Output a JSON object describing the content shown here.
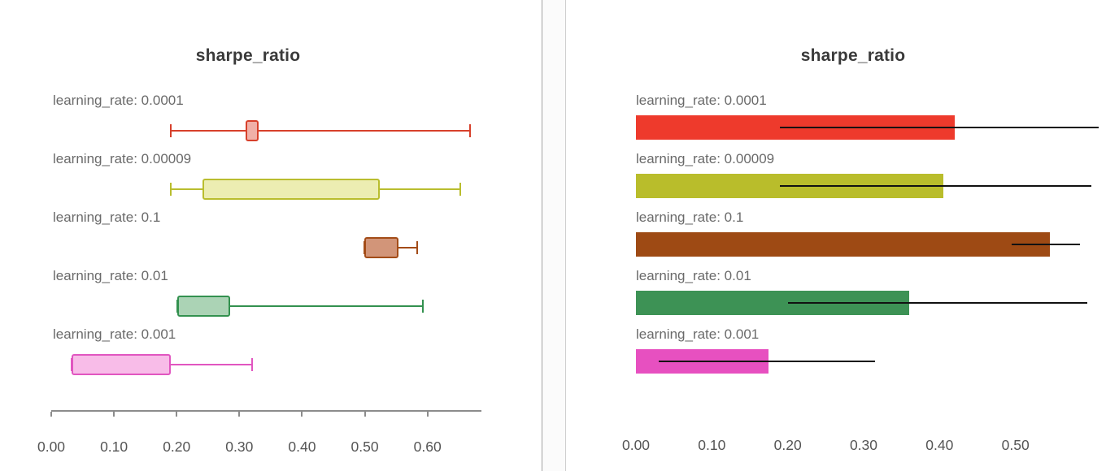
{
  "chart_data": [
    {
      "type": "boxplot",
      "title": "sharpe_ratio",
      "orientation": "horizontal",
      "xlabel": "",
      "xlim": [
        0.0,
        0.686
      ],
      "axis_line": true,
      "grid": false,
      "xticks": [
        0.0,
        0.1,
        0.2,
        0.3,
        0.4,
        0.5,
        0.6
      ],
      "xtick_labels": [
        "0.00",
        "0.10",
        "0.20",
        "0.30",
        "0.40",
        "0.50",
        "0.60"
      ],
      "series": [
        {
          "label": "learning_rate: 0.0001",
          "color": "#d7402b",
          "fill": "#f0b0a8",
          "whisker_low": 0.19,
          "q1": 0.31,
          "q3": 0.33,
          "whisker_high": 0.67
        },
        {
          "label": "learning_rate: 0.00009",
          "color": "#b9bd2e",
          "fill": "#ecedb2",
          "whisker_low": 0.19,
          "q1": 0.24,
          "q3": 0.525,
          "whisker_high": 0.655
        },
        {
          "label": "learning_rate: 0.1",
          "color": "#a34c18",
          "fill": "#d29579",
          "whisker_low": 0.5,
          "q1": 0.5,
          "q3": 0.555,
          "whisker_high": 0.585
        },
        {
          "label": "learning_rate: 0.01",
          "color": "#33914f",
          "fill": "#abd3b5",
          "whisker_low": 0.2,
          "q1": 0.2,
          "q3": 0.285,
          "whisker_high": 0.595
        },
        {
          "label": "learning_rate: 0.001",
          "color": "#e156c0",
          "fill": "#f8bce8",
          "whisker_low": 0.03,
          "q1": 0.03,
          "q3": 0.19,
          "whisker_high": 0.32
        }
      ]
    },
    {
      "type": "bar",
      "title": "sharpe_ratio",
      "orientation": "horizontal",
      "xlabel": "",
      "xlim": [
        0.0,
        0.63
      ],
      "axis_line": false,
      "grid": false,
      "error_bar_color": "#111111",
      "xticks": [
        0.0,
        0.1,
        0.2,
        0.3,
        0.4,
        0.5
      ],
      "xtick_labels": [
        "0.00",
        "0.10",
        "0.20",
        "0.30",
        "0.40",
        "0.50"
      ],
      "series": [
        {
          "label": "learning_rate: 0.0001",
          "color": "#ee3a2c",
          "value": 0.42,
          "err_low": 0.19,
          "err_high": 0.61
        },
        {
          "label": "learning_rate: 0.00009",
          "color": "#b9bd2b",
          "value": 0.405,
          "err_low": 0.19,
          "err_high": 0.6
        },
        {
          "label": "learning_rate: 0.1",
          "color": "#9e4a14",
          "value": 0.545,
          "err_low": 0.495,
          "err_high": 0.585
        },
        {
          "label": "learning_rate: 0.01",
          "color": "#3d9255",
          "value": 0.36,
          "err_low": 0.2,
          "err_high": 0.595
        },
        {
          "label": "learning_rate: 0.001",
          "color": "#e750c0",
          "value": 0.175,
          "err_low": 0.03,
          "err_high": 0.315
        }
      ]
    }
  ]
}
